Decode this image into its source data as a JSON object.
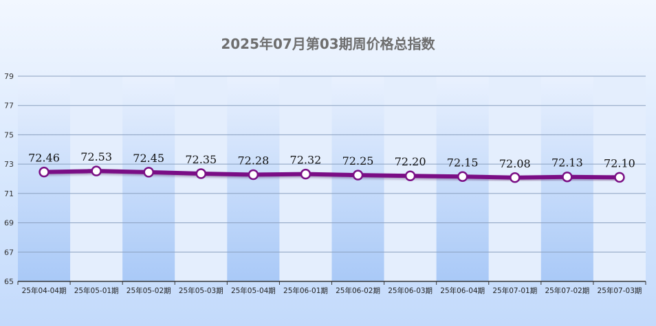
{
  "chart_data": {
    "type": "line",
    "title": "2025年07月第03期周价格总指数",
    "xlabel": "",
    "ylabel": "",
    "categories": [
      "25年04-04期",
      "25年05-01期",
      "25年05-02期",
      "25年05-03期",
      "25年05-04期",
      "25年06-01期",
      "25年06-02期",
      "25年06-03期",
      "25年06-04期",
      "25年07-01期",
      "25年07-02期",
      "25年07-03期"
    ],
    "series": [
      {
        "values": [
          72.46,
          72.53,
          72.45,
          72.35,
          72.28,
          72.32,
          72.25,
          72.2,
          72.15,
          72.08,
          72.13,
          72.1
        ],
        "labels": [
          "72.46",
          "72.53",
          "72.45",
          "72.35",
          "72.28",
          "72.32",
          "72.25",
          "72.20",
          "72.15",
          "72.08",
          "72.13",
          "72.10"
        ]
      }
    ],
    "ylim": [
      65,
      79
    ],
    "yticks": [
      65,
      67,
      69,
      71,
      73,
      75,
      77,
      79
    ],
    "grid": true,
    "legend": "none",
    "colors": {
      "line": "#7a0f85",
      "marker_fill": "#ffffff",
      "band_dark": "#bcd6fb",
      "band_light": "#e4eefd",
      "gridline": "#8aa0bf",
      "axis": "#333333"
    }
  }
}
